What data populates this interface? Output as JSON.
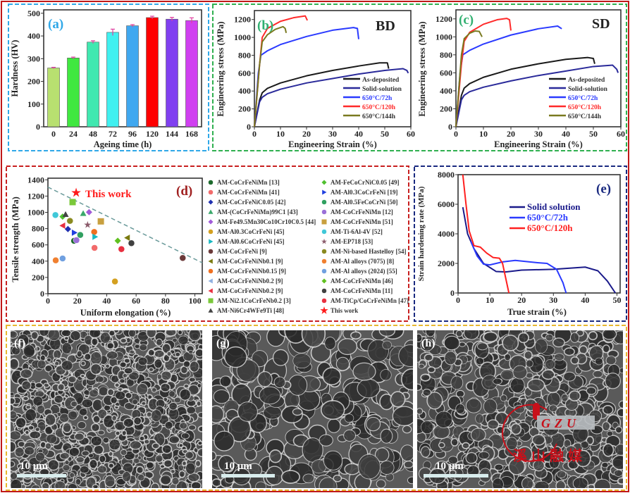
{
  "figure": {
    "sem_panels": [
      {
        "label": "(f)",
        "scale_bar": "10 μm"
      },
      {
        "label": "(g)",
        "scale_bar": "10 μm"
      },
      {
        "label": "(h)",
        "scale_bar": "10 μm"
      }
    ],
    "watermark": {
      "logo_text": "GZU",
      "caption": "溪山融媒",
      "color": "#c8101a"
    }
  },
  "chart_data": [
    {
      "id": "a",
      "type": "bar",
      "panel_label": "(a)",
      "xlabel": "Ageing time (h)",
      "ylabel": "Hardness (HV)",
      "categories": [
        "0",
        "24",
        "48",
        "72",
        "96",
        "120",
        "144",
        "168"
      ],
      "values": [
        259,
        303,
        373,
        416,
        445,
        481,
        474,
        468
      ],
      "errors": [
        3,
        4,
        6,
        14,
        5,
        6,
        8,
        12
      ],
      "colors": [
        "#b8e070",
        "#40e840",
        "#40e8b0",
        "#40f0f0",
        "#40a8f0",
        "#ff0000",
        "#8040f0",
        "#d040f0"
      ],
      "ylim": [
        0,
        515
      ],
      "yticks": [
        0,
        100,
        200,
        300,
        400,
        500
      ],
      "grid": false
    },
    {
      "id": "b",
      "type": "line",
      "panel_label": "(b)",
      "annotation": "BD",
      "xlabel": "Engineering Strain (%)",
      "ylabel": "Engineering stress (MPa)",
      "xlim": [
        0,
        60
      ],
      "ylim": [
        0,
        1300
      ],
      "xticks": [
        0,
        10,
        20,
        30,
        40,
        50,
        60
      ],
      "yticks": [
        0,
        200,
        400,
        600,
        800,
        1000,
        1200
      ],
      "legend_position": "bottom-right",
      "grid": false,
      "series": [
        {
          "name": "As-deposited",
          "color": "#1a1a1a",
          "points": [
            [
              0,
              0
            ],
            [
              2,
              300
            ],
            [
              3,
              380
            ],
            [
              5,
              430
            ],
            [
              10,
              490
            ],
            [
              20,
              570
            ],
            [
              30,
              630
            ],
            [
              40,
              680
            ],
            [
              48,
              715
            ],
            [
              51,
              715
            ],
            [
              51.5,
              650
            ]
          ]
        },
        {
          "name": "Solid-solution",
          "color": "#2a2a9a",
          "points": [
            [
              0,
              0
            ],
            [
              2,
              280
            ],
            [
              3,
              330
            ],
            [
              5,
              370
            ],
            [
              10,
              420
            ],
            [
              20,
              490
            ],
            [
              30,
              540
            ],
            [
              40,
              590
            ],
            [
              50,
              630
            ],
            [
              57,
              650
            ],
            [
              58.5,
              630
            ],
            [
              59,
              600
            ]
          ]
        },
        {
          "name": "650°C/72h",
          "color": "#2a3aff",
          "points": [
            [
              0,
              0
            ],
            [
              1.5,
              600
            ],
            [
              2.5,
              800
            ],
            [
              5,
              850
            ],
            [
              10,
              920
            ],
            [
              20,
              1010
            ],
            [
              30,
              1080
            ],
            [
              38,
              1110
            ],
            [
              39.5,
              1100
            ],
            [
              40,
              980
            ]
          ]
        },
        {
          "name": "650°C/120h",
          "color": "#ff2a2a",
          "points": [
            [
              0,
              0
            ],
            [
              2,
              700
            ],
            [
              3,
              1000
            ],
            [
              5,
              1100
            ],
            [
              10,
              1180
            ],
            [
              15,
              1220
            ],
            [
              19.5,
              1240
            ],
            [
              20.3,
              1190
            ]
          ]
        },
        {
          "name": "650°C/144h",
          "color": "#7a7a20",
          "points": [
            [
              0,
              0
            ],
            [
              2,
              700
            ],
            [
              3,
              950
            ],
            [
              5,
              1030
            ],
            [
              8,
              1090
            ],
            [
              11,
              1120
            ],
            [
              11.8,
              1100
            ],
            [
              12.2,
              1050
            ]
          ]
        }
      ]
    },
    {
      "id": "c",
      "type": "line",
      "panel_label": "(c)",
      "annotation": "SD",
      "xlabel": "Engineering Strain (%)",
      "ylabel": "Engineering stress (MPa)",
      "xlim": [
        0,
        60
      ],
      "ylim": [
        0,
        1300
      ],
      "xticks": [
        0,
        10,
        20,
        30,
        40,
        50,
        60
      ],
      "yticks": [
        0,
        200,
        400,
        600,
        800,
        1000,
        1200
      ],
      "legend_position": "bottom-right",
      "grid": false,
      "series": [
        {
          "name": "As-deposited",
          "color": "#1a1a1a",
          "points": [
            [
              0,
              0
            ],
            [
              2,
              350
            ],
            [
              3,
              430
            ],
            [
              5,
              480
            ],
            [
              10,
              550
            ],
            [
              20,
              640
            ],
            [
              30,
              700
            ],
            [
              40,
              750
            ],
            [
              48,
              770
            ],
            [
              50,
              760
            ],
            [
              50.5,
              700
            ]
          ]
        },
        {
          "name": "Solid-solution",
          "color": "#2a2a9a",
          "points": [
            [
              0,
              0
            ],
            [
              2,
              300
            ],
            [
              3,
              350
            ],
            [
              5,
              390
            ],
            [
              10,
              440
            ],
            [
              20,
              510
            ],
            [
              30,
              570
            ],
            [
              40,
              620
            ],
            [
              50,
              670
            ],
            [
              57,
              685
            ],
            [
              58.5,
              640
            ],
            [
              59,
              600
            ]
          ]
        },
        {
          "name": "650°C/72h",
          "color": "#2a3aff",
          "points": [
            [
              0,
              0
            ],
            [
              1.5,
              600
            ],
            [
              2.5,
              800
            ],
            [
              5,
              850
            ],
            [
              10,
              920
            ],
            [
              20,
              1020
            ],
            [
              30,
              1090
            ],
            [
              37,
              1120
            ],
            [
              38.5,
              1090
            ]
          ]
        },
        {
          "name": "650°C/120h",
          "color": "#ff2a2a",
          "points": [
            [
              0,
              0
            ],
            [
              2,
              700
            ],
            [
              3,
              950
            ],
            [
              5,
              1050
            ],
            [
              10,
              1140
            ],
            [
              15,
              1190
            ],
            [
              18.5,
              1205
            ],
            [
              19.5,
              1190
            ],
            [
              20,
              1070
            ]
          ]
        },
        {
          "name": "650°C/144h",
          "color": "#7a7a20",
          "points": [
            [
              0,
              0
            ],
            [
              2,
              800
            ],
            [
              3,
              980
            ],
            [
              5,
              1040
            ],
            [
              7,
              1065
            ],
            [
              8.5,
              1060
            ],
            [
              9.5,
              1000
            ]
          ]
        }
      ]
    },
    {
      "id": "d",
      "type": "scatter",
      "panel_label": "(d)",
      "annotation": "This work",
      "xlabel": "Uniform elongation (%)",
      "ylabel": "Tensile strength (MPa)",
      "xlim": [
        0,
        105
      ],
      "ylim": [
        0,
        1420
      ],
      "xticks": [
        0,
        20,
        40,
        60,
        80,
        100
      ],
      "yticks": [
        0,
        200,
        400,
        600,
        800,
        1000,
        1200,
        1400
      ],
      "grid": false,
      "legend_position": "right",
      "trend_line": {
        "style": "dashed",
        "color": "#6a9a9a",
        "points": [
          [
            0,
            1310
          ],
          [
            105,
            380
          ]
        ]
      },
      "legend": [
        {
          "label": "AM-CoCrFeNiMn [13]",
          "color": "#1e6b2e",
          "shape": "circle"
        },
        {
          "label": "AM-CoCrFeNiMn [41]",
          "color": "#f26b6b",
          "shape": "circle"
        },
        {
          "label": "AM-CoCrFeNiC0.05 [42]",
          "color": "#2030b0",
          "shape": "diamond"
        },
        {
          "label": "AM-(CoCrFeNiMn)99C1 [43]",
          "color": "#3aa86b",
          "shape": "triangle"
        },
        {
          "label": "AM-Fe49.5Mn30Co10Cr10C0.5 [44]",
          "color": "#a05ad8",
          "shape": "diamond"
        },
        {
          "label": "AM-Al0.3CoCrFeNi [45]",
          "color": "#d4a020",
          "shape": "circle"
        },
        {
          "label": "AM-Al0.6CoCrFeNi [45]",
          "color": "#18b8c0",
          "shape": "triangle-right"
        },
        {
          "label": "AM-CoCrFeNi [9]",
          "color": "#6b3a3a",
          "shape": "circle"
        },
        {
          "label": "AM-CoCrFeNiNb0.1 [9]",
          "color": "#7a7a10",
          "shape": "triangle-left"
        },
        {
          "label": "AM-CoCrFeNiNb0.15 [9]",
          "color": "#f07020",
          "shape": "circle"
        },
        {
          "label": "AM-CoCrFeNiNb0.2 [9]",
          "color": "#8fb0e0",
          "shape": "triangle-left"
        },
        {
          "label": "AM-CoCrFeNiNb0.2 [9]",
          "color": "#e83040",
          "shape": "triangle-left"
        },
        {
          "label": "AM-Ni2.1CoCrFeNb0.2 [3]",
          "color": "#7ac83a",
          "shape": "square"
        },
        {
          "label": "AM-Ni6Cr4WFe9Ti [48]",
          "color": "#444444",
          "shape": "triangle"
        },
        {
          "label": "AM-FeCoCrNiC0.05 [49]",
          "color": "#50c030",
          "shape": "diamond"
        },
        {
          "label": "AM-Al0.3CoCrFeNi [19]",
          "color": "#2040e0",
          "shape": "triangle-right"
        },
        {
          "label": "AM-Al0.5FeCoCrNi [50]",
          "color": "#30a060",
          "shape": "circle"
        },
        {
          "label": "AM-CoCrFeNiMn [12]",
          "color": "#9a70d8",
          "shape": "circle"
        },
        {
          "label": "AM-CoCrFeNiMn [51]",
          "color": "#c8a040",
          "shape": "square"
        },
        {
          "label": "AM-Ti-6Al-4V [52]",
          "color": "#40c8d8",
          "shape": "circle"
        },
        {
          "label": "AM-EP718 [53]",
          "color": "#8a5a6a",
          "shape": "star"
        },
        {
          "label": "AM-Ni-based Hastelloy [54]",
          "color": "#8a8a20",
          "shape": "circle"
        },
        {
          "label": "AM-Al alloys (7075) [8]",
          "color": "#f08030",
          "shape": "circle"
        },
        {
          "label": "AM-Al alloys (2024) [55]",
          "color": "#70a0e0",
          "shape": "circle"
        },
        {
          "label": "AM-CoCrFeNiMn [46]",
          "color": "#60c020",
          "shape": "diamond"
        },
        {
          "label": "AM-CoCrFeNiMn [11]",
          "color": "#404040",
          "shape": "circle"
        },
        {
          "label": "AM-TiCp/CoCrFeNiMn [47]",
          "color": "#e83040",
          "shape": "circle"
        },
        {
          "label": "This work",
          "color": "#ff1a1a",
          "shape": "star"
        }
      ],
      "points": [
        {
          "series": 12,
          "x": 16.8,
          "y": 1126
        },
        {
          "series": 19,
          "x": 5.1,
          "y": 967
        },
        {
          "series": 14,
          "x": 10,
          "y": 947
        },
        {
          "series": 13,
          "x": 12,
          "y": 975
        },
        {
          "series": 3,
          "x": 24,
          "y": 987
        },
        {
          "series": 4,
          "x": 28,
          "y": 1002
        },
        {
          "series": 21,
          "x": 15,
          "y": 895
        },
        {
          "series": 18,
          "x": 36,
          "y": 889
        },
        {
          "series": 20,
          "x": 27,
          "y": 846
        },
        {
          "series": 11,
          "x": 10,
          "y": 837
        },
        {
          "series": 2,
          "x": 13.6,
          "y": 794
        },
        {
          "series": 15,
          "x": 18,
          "y": 750
        },
        {
          "series": 9,
          "x": 31.5,
          "y": 759
        },
        {
          "series": 16,
          "x": 22,
          "y": 722
        },
        {
          "series": 6,
          "x": 32,
          "y": 699
        },
        {
          "series": 0,
          "x": 17.8,
          "y": 650
        },
        {
          "series": 17,
          "x": 19.4,
          "y": 658
        },
        {
          "series": 24,
          "x": 47.5,
          "y": 650
        },
        {
          "series": 8,
          "x": 54,
          "y": 687
        },
        {
          "series": 25,
          "x": 56.8,
          "y": 621
        },
        {
          "series": 1,
          "x": 31.7,
          "y": 563
        },
        {
          "series": 26,
          "x": 50,
          "y": 548
        },
        {
          "series": 22,
          "x": 5.3,
          "y": 410
        },
        {
          "series": 23,
          "x": 10,
          "y": 433
        },
        {
          "series": 5,
          "x": 45.6,
          "y": 150
        },
        {
          "series": 7,
          "x": 91.7,
          "y": 439
        },
        {
          "series": 27,
          "x": 19.2,
          "y": 1241
        }
      ]
    },
    {
      "id": "e",
      "type": "line",
      "panel_label": "(e)",
      "xlabel": "True strain (%)",
      "ylabel": "Strain hardening rate (MPa)",
      "xlim": [
        0,
        51
      ],
      "ylim": [
        0,
        8000
      ],
      "xticks": [
        0,
        10,
        20,
        30,
        40,
        50
      ],
      "yticks": [
        0,
        2000,
        4000,
        6000,
        8000
      ],
      "legend_position": "center",
      "grid": false,
      "series": [
        {
          "name": "Solid solution",
          "color": "#1a1a8a",
          "points": [
            [
              1.5,
              5800
            ],
            [
              3,
              4000
            ],
            [
              5,
              3000
            ],
            [
              8,
              2000
            ],
            [
              12,
              1450
            ],
            [
              15,
              1420
            ],
            [
              20,
              1550
            ],
            [
              30,
              1600
            ],
            [
              40,
              1750
            ],
            [
              44,
              1500
            ],
            [
              47,
              800
            ],
            [
              49.5,
              0
            ]
          ]
        },
        {
          "name": "650°C/72h",
          "color": "#2a3aff",
          "points": [
            [
              4,
              3500
            ],
            [
              6,
              2500
            ],
            [
              8,
              1950
            ],
            [
              10,
              1900
            ],
            [
              14,
              2100
            ],
            [
              18,
              2200
            ],
            [
              25,
              2050
            ],
            [
              28,
              2000
            ],
            [
              31,
              1600
            ],
            [
              33,
              700
            ],
            [
              34,
              0
            ]
          ]
        },
        {
          "name": "650°C/120h",
          "color": "#ff2020",
          "points": [
            [
              1.5,
              8000
            ],
            [
              2.5,
              6000
            ],
            [
              3.5,
              4200
            ],
            [
              5,
              3200
            ],
            [
              7,
              3100
            ],
            [
              9,
              2700
            ],
            [
              11,
              2400
            ],
            [
              13,
              2350
            ],
            [
              14,
              2000
            ],
            [
              15,
              1000
            ],
            [
              16,
              0
            ]
          ]
        }
      ]
    }
  ]
}
